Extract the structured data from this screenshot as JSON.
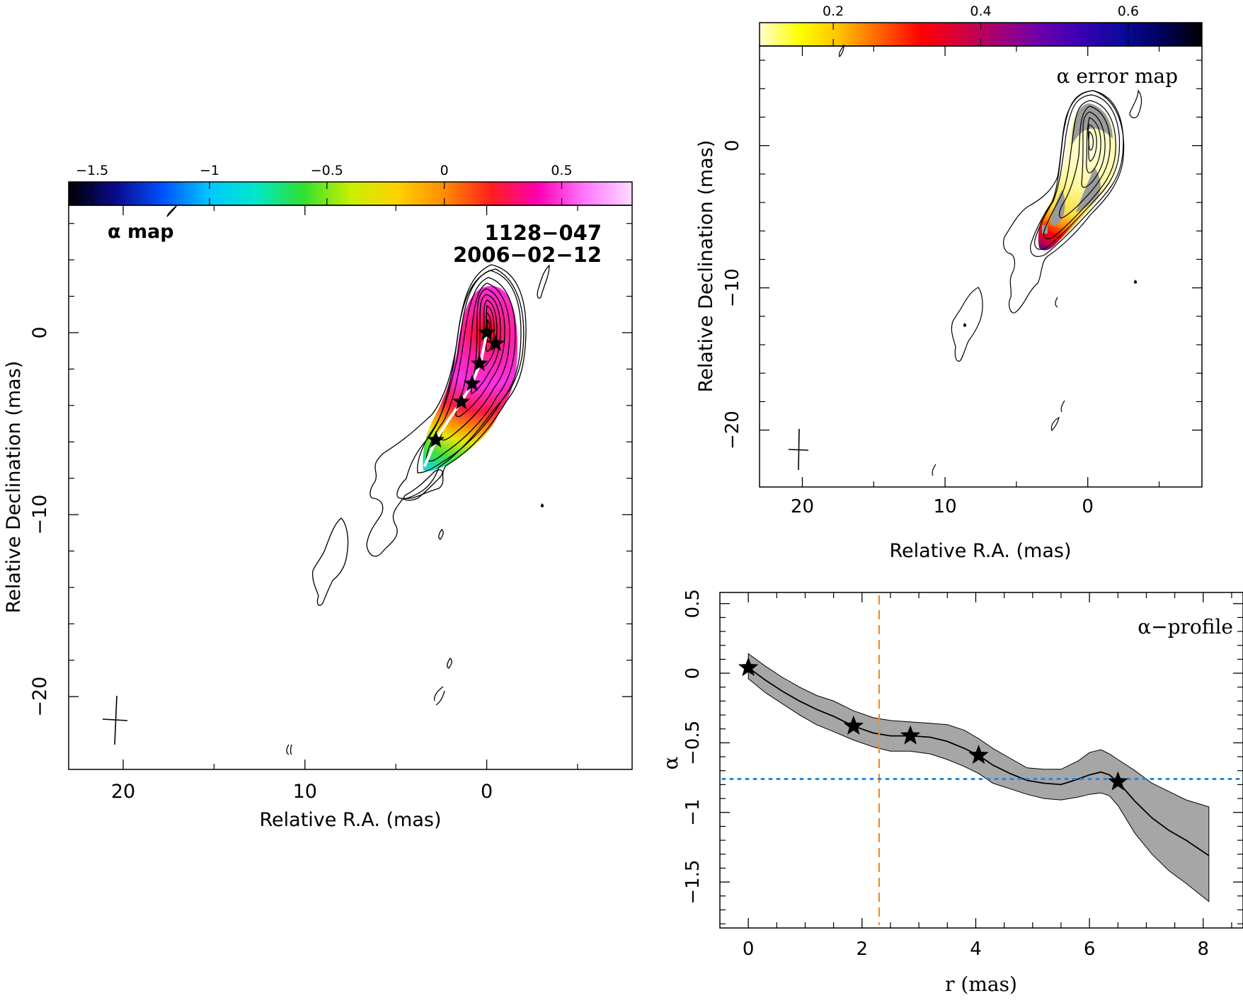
{
  "chart_data": [
    {
      "type": "heatmap",
      "panel": "alpha-map",
      "title": "α map",
      "source_label": "1128−047",
      "epoch_label": "2006−02−12",
      "xlabel": "Relative R.A. (mas)",
      "ylabel": "Relative Declination (mas)",
      "xlim": [
        23,
        -8
      ],
      "ylim": [
        -24,
        7
      ],
      "x_ticks": [
        {
          "v": 20,
          "label": "20"
        },
        {
          "v": 10,
          "label": "10"
        },
        {
          "v": 0,
          "label": "0"
        }
      ],
      "y_ticks": [
        {
          "v": 0,
          "label": "0"
        },
        {
          "v": -10,
          "label": "−10"
        },
        {
          "v": -20,
          "label": "−20"
        }
      ],
      "colorbar": {
        "range": [
          -1.6,
          0.8
        ],
        "ticks": [
          {
            "v": -1.5,
            "label": "−1.5"
          },
          {
            "v": -1,
            "label": "−1"
          },
          {
            "v": -0.5,
            "label": "−0.5"
          },
          {
            "v": 0,
            "label": "0"
          },
          {
            "v": 0.5,
            "label": "0.5"
          }
        ],
        "colors": [
          "#000000",
          "#0a0a8c",
          "#0050ff",
          "#00c8ff",
          "#00e8c8",
          "#30e030",
          "#c8f000",
          "#ffd200",
          "#ff8c00",
          "#ff1e1e",
          "#ff00b4",
          "#ff78ff",
          "#ffdcff"
        ]
      },
      "component_stars": [
        [
          0,
          0
        ],
        [
          -0.5,
          -0.6
        ],
        [
          0.4,
          -1.7
        ],
        [
          0.8,
          -2.8
        ],
        [
          1.4,
          -3.8
        ],
        [
          2.8,
          -5.9
        ]
      ],
      "ridge_line": [
        [
          0,
          0
        ],
        [
          0.3,
          -1.5
        ],
        [
          0.8,
          -2.8
        ],
        [
          1.4,
          -3.8
        ],
        [
          2.1,
          -4.8
        ],
        [
          2.8,
          -5.9
        ],
        [
          3.4,
          -7.3
        ]
      ]
    },
    {
      "type": "heatmap",
      "panel": "alpha-error-map",
      "title": "α error map",
      "xlabel": "Relative R.A. (mas)",
      "ylabel": "Relative Declination (mas)",
      "xlim": [
        23,
        -8
      ],
      "ylim": [
        -24,
        7
      ],
      "x_ticks": [
        {
          "v": 20,
          "label": "20"
        },
        {
          "v": 10,
          "label": "10"
        },
        {
          "v": 0,
          "label": "0"
        }
      ],
      "y_ticks": [
        {
          "v": 0,
          "label": "0"
        },
        {
          "v": -10,
          "label": "−10"
        },
        {
          "v": -20,
          "label": "−20"
        }
      ],
      "colorbar": {
        "range": [
          0.1,
          0.7
        ],
        "ticks": [
          {
            "v": 0.2,
            "label": "0.2"
          },
          {
            "v": 0.4,
            "label": "0.4"
          },
          {
            "v": 0.6,
            "label": "0.6"
          }
        ],
        "colors": [
          "#ffffd0",
          "#ffff00",
          "#ffc000",
          "#ff6000",
          "#ff0000",
          "#d4003c",
          "#a0007a",
          "#6a00aa",
          "#3a00b4",
          "#0a0a9a",
          "#00005a",
          "#000000"
        ]
      }
    },
    {
      "type": "line",
      "panel": "alpha-profile",
      "title": "α−profile",
      "xlabel": "r (mas)",
      "ylabel": "α",
      "xlim": [
        -0.5,
        8.7
      ],
      "ylim": [
        -1.83,
        0.58
      ],
      "x_ticks": [
        {
          "v": 0,
          "label": "0"
        },
        {
          "v": 2,
          "label": "2"
        },
        {
          "v": 4,
          "label": "4"
        },
        {
          "v": 6,
          "label": "6"
        },
        {
          "v": 8,
          "label": "8"
        }
      ],
      "y_ticks": [
        {
          "v": 0.5,
          "label": "0.5"
        },
        {
          "v": 0,
          "label": "0"
        },
        {
          "v": -0.5,
          "label": "−0.5"
        },
        {
          "v": -1,
          "label": "−1"
        },
        {
          "v": -1.5,
          "label": "−1.5"
        }
      ],
      "series": [
        {
          "x": [
            0,
            0.3,
            0.6,
            0.9,
            1.2,
            1.5,
            1.85,
            2.2,
            2.5,
            2.85,
            3.2,
            3.5,
            3.8,
            4.05,
            4.3,
            4.6,
            4.9,
            5.2,
            5.5,
            5.8,
            6.0,
            6.2,
            6.35,
            6.5,
            6.8,
            7.1,
            7.4,
            7.7,
            8.1
          ],
          "y": [
            0.04,
            -0.05,
            -0.13,
            -0.2,
            -0.26,
            -0.31,
            -0.38,
            -0.43,
            -0.45,
            -0.45,
            -0.46,
            -0.49,
            -0.54,
            -0.59,
            -0.66,
            -0.72,
            -0.77,
            -0.79,
            -0.8,
            -0.76,
            -0.73,
            -0.71,
            -0.73,
            -0.78,
            -0.92,
            -1.04,
            -1.13,
            -1.2,
            -1.31
          ],
          "err_low": [
            -0.04,
            -0.14,
            -0.22,
            -0.3,
            -0.37,
            -0.42,
            -0.48,
            -0.53,
            -0.56,
            -0.56,
            -0.58,
            -0.62,
            -0.67,
            -0.72,
            -0.79,
            -0.83,
            -0.87,
            -0.9,
            -0.91,
            -0.89,
            -0.87,
            -0.86,
            -0.88,
            -0.95,
            -1.15,
            -1.3,
            -1.42,
            -1.51,
            -1.64
          ],
          "err_high": [
            0.14,
            0.05,
            -0.03,
            -0.1,
            -0.16,
            -0.2,
            -0.27,
            -0.32,
            -0.34,
            -0.35,
            -0.36,
            -0.37,
            -0.41,
            -0.47,
            -0.54,
            -0.61,
            -0.68,
            -0.69,
            -0.69,
            -0.63,
            -0.57,
            -0.55,
            -0.58,
            -0.62,
            -0.7,
            -0.79,
            -0.85,
            -0.91,
            -0.96
          ]
        }
      ],
      "stars": [
        [
          0,
          0.04
        ],
        [
          1.85,
          -0.38
        ],
        [
          2.85,
          -0.45
        ],
        [
          4.05,
          -0.59
        ],
        [
          6.5,
          -0.78
        ]
      ],
      "vertical_dashed_line_x": 2.3,
      "horizontal_dotted_line_y": -0.76,
      "colors": {
        "band": "#a6a6a6",
        "vline": "#f28c28",
        "hline": "#1f88e5"
      }
    }
  ]
}
